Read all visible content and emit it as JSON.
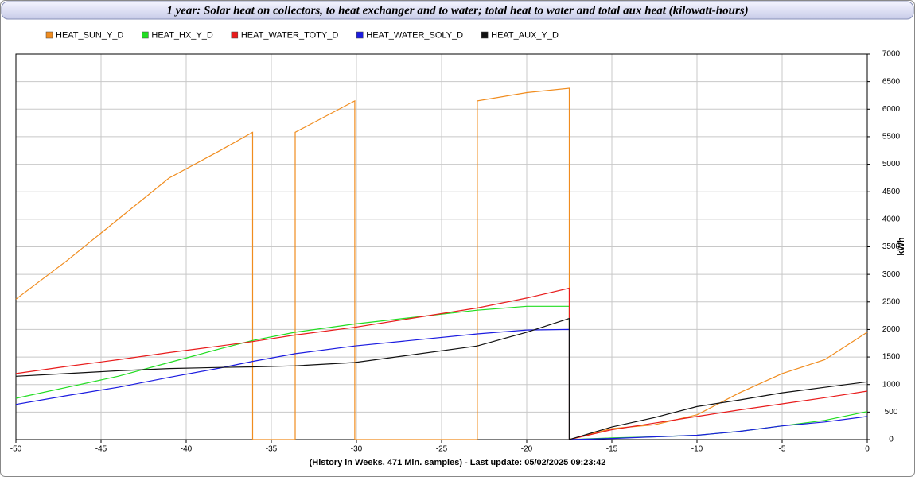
{
  "chart_data": {
    "type": "line",
    "title": "1 year: Solar heat on collectors, to heat exchanger and to water; total heat to water and total aux heat (kilowatt-hours)",
    "x_label": "(History in Weeks. 471 Min. samples) - Last update: 05/02/2025 09:23:42",
    "y_label": "kWh",
    "x": [
      -50,
      -47,
      -44,
      -41,
      -38,
      -36.1,
      -36.1,
      -33.6,
      -33.6,
      -30.1,
      -30.1,
      -22.9,
      -22.9,
      -20,
      -17.5,
      -17.5,
      -15,
      -12.5,
      -10,
      -7.5,
      -5,
      -2.5,
      0
    ],
    "series": [
      {
        "name": "HEAT_SUN_Y_D",
        "color": "#f08c1e",
        "values": [
          2550,
          3250,
          4000,
          4750,
          5250,
          5580,
          0,
          0,
          5580,
          6150,
          0,
          0,
          6150,
          6300,
          6380,
          0,
          200,
          270,
          450,
          850,
          1200,
          1450,
          1950
        ]
      },
      {
        "name": "HEAT_HX_Y_D",
        "color": "#22dd22",
        "values": [
          750,
          950,
          1150,
          1400,
          1650,
          1800,
          1800,
          1950,
          1950,
          2100,
          2100,
          2350,
          2350,
          2420,
          2420,
          0,
          30,
          50,
          80,
          150,
          250,
          350,
          510
        ]
      },
      {
        "name": "HEAT_WATER_TOTY_D",
        "color": "#e81c1c",
        "values": [
          1200,
          1330,
          1450,
          1580,
          1700,
          1780,
          1780,
          1900,
          1900,
          2040,
          2040,
          2390,
          2390,
          2570,
          2750,
          0,
          180,
          300,
          420,
          540,
          650,
          760,
          880
        ]
      },
      {
        "name": "HEAT_WATER_SOLY_D",
        "color": "#1c1ce0",
        "values": [
          640,
          800,
          950,
          1130,
          1300,
          1420,
          1420,
          1560,
          1560,
          1700,
          1700,
          1920,
          1920,
          1990,
          2000,
          0,
          20,
          50,
          80,
          150,
          250,
          320,
          420
        ]
      },
      {
        "name": "HEAT_AUX_Y_D",
        "color": "#111111",
        "values": [
          1150,
          1200,
          1250,
          1290,
          1310,
          1320,
          1320,
          1340,
          1340,
          1400,
          1400,
          1700,
          1700,
          1950,
          2200,
          0,
          230,
          400,
          600,
          720,
          850,
          950,
          1050
        ]
      }
    ],
    "xlim": [
      -50,
      0
    ],
    "xticks": [
      -50,
      -45,
      -40,
      -35,
      -30,
      -25,
      -20,
      -15,
      -10,
      -5,
      0
    ],
    "ylim": [
      0,
      7000
    ],
    "yticks": [
      0,
      500,
      1000,
      1500,
      2000,
      2500,
      3000,
      3500,
      4000,
      4500,
      5000,
      5500,
      6000,
      6500,
      7000
    ],
    "grid": true
  }
}
